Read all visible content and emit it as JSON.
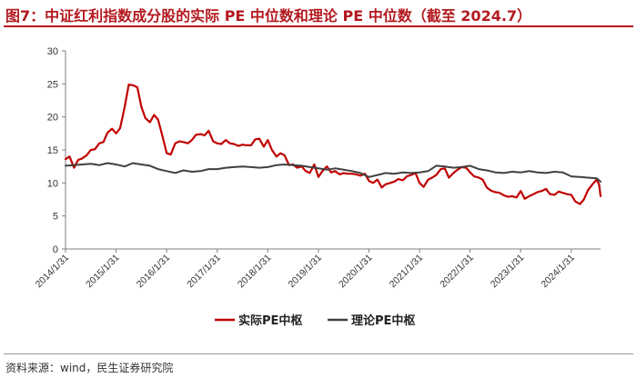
{
  "header": {
    "title": "图7：中证红利指数成分股的实际 PE 中位数和理论 PE 中位数（截至 2024.7）",
    "source": "资料来源：wind，民生证券研究院"
  },
  "colors": {
    "accent": "#b3191f",
    "actual": "#c00000",
    "theory": "#404040",
    "axis": "#7f7f7f"
  },
  "chart_data": {
    "type": "line",
    "title": "图7：中证红利指数成分股的实际 PE 中位数和理论 PE 中位数（截至 2024.7）",
    "xlabel": "",
    "ylabel": "",
    "ylim": [
      0,
      30
    ],
    "yticks": [
      0,
      5,
      10,
      15,
      20,
      25,
      30
    ],
    "xlim": [
      2014.0,
      2024.58
    ],
    "xticks": [
      {
        "label": "2014/1/31",
        "x": 2014.0
      },
      {
        "label": "2015/1/31",
        "x": 2015.0
      },
      {
        "label": "2016/1/31",
        "x": 2016.0
      },
      {
        "label": "2017/1/31",
        "x": 2017.0
      },
      {
        "label": "2018/1/31",
        "x": 2018.0
      },
      {
        "label": "2019/1/31",
        "x": 2019.0
      },
      {
        "label": "2020/1/31",
        "x": 2020.0
      },
      {
        "label": "2021/1/31",
        "x": 2021.0
      },
      {
        "label": "2022/1/31",
        "x": 2022.0
      },
      {
        "label": "2023/1/31",
        "x": 2023.0
      },
      {
        "label": "2024/1/31",
        "x": 2024.0
      }
    ],
    "legend_position": "bottom",
    "series": [
      {
        "name": "实际PE中枢",
        "color": "#c00000",
        "points": [
          [
            2014.0,
            13.6
          ],
          [
            2014.08,
            14.0
          ],
          [
            2014.17,
            12.3
          ],
          [
            2014.25,
            13.5
          ],
          [
            2014.33,
            13.7
          ],
          [
            2014.42,
            14.2
          ],
          [
            2014.5,
            15.0
          ],
          [
            2014.58,
            15.1
          ],
          [
            2014.67,
            16.0
          ],
          [
            2014.75,
            16.2
          ],
          [
            2014.83,
            17.6
          ],
          [
            2014.92,
            18.2
          ],
          [
            2015.0,
            17.5
          ],
          [
            2015.08,
            18.3
          ],
          [
            2015.17,
            21.5
          ],
          [
            2015.25,
            24.9
          ],
          [
            2015.33,
            24.8
          ],
          [
            2015.42,
            24.5
          ],
          [
            2015.5,
            21.5
          ],
          [
            2015.58,
            19.8
          ],
          [
            2015.67,
            19.2
          ],
          [
            2015.75,
            20.3
          ],
          [
            2015.83,
            19.6
          ],
          [
            2015.92,
            17.0
          ],
          [
            2016.0,
            14.5
          ],
          [
            2016.08,
            14.3
          ],
          [
            2016.17,
            16.0
          ],
          [
            2016.25,
            16.3
          ],
          [
            2016.33,
            16.2
          ],
          [
            2016.42,
            16.0
          ],
          [
            2016.5,
            16.5
          ],
          [
            2016.58,
            17.3
          ],
          [
            2016.67,
            17.4
          ],
          [
            2016.75,
            17.2
          ],
          [
            2016.83,
            17.9
          ],
          [
            2016.92,
            16.3
          ],
          [
            2017.0,
            16.0
          ],
          [
            2017.08,
            15.9
          ],
          [
            2017.17,
            16.5
          ],
          [
            2017.25,
            16.0
          ],
          [
            2017.33,
            15.9
          ],
          [
            2017.42,
            15.6
          ],
          [
            2017.5,
            15.8
          ],
          [
            2017.58,
            15.7
          ],
          [
            2017.67,
            15.7
          ],
          [
            2017.75,
            16.6
          ],
          [
            2017.83,
            16.7
          ],
          [
            2017.92,
            15.5
          ],
          [
            2018.0,
            16.5
          ],
          [
            2018.08,
            15.0
          ],
          [
            2018.17,
            14.0
          ],
          [
            2018.25,
            14.5
          ],
          [
            2018.33,
            14.2
          ],
          [
            2018.42,
            12.7
          ],
          [
            2018.5,
            12.8
          ],
          [
            2018.58,
            12.3
          ],
          [
            2018.67,
            12.5
          ],
          [
            2018.75,
            11.8
          ],
          [
            2018.83,
            11.5
          ],
          [
            2018.92,
            12.8
          ],
          [
            2019.0,
            10.9
          ],
          [
            2019.08,
            11.8
          ],
          [
            2019.17,
            12.5
          ],
          [
            2019.25,
            11.6
          ],
          [
            2019.33,
            11.8
          ],
          [
            2019.42,
            11.3
          ],
          [
            2019.5,
            11.5
          ],
          [
            2019.58,
            11.4
          ],
          [
            2019.67,
            11.4
          ],
          [
            2019.75,
            11.3
          ],
          [
            2019.83,
            11.1
          ],
          [
            2019.92,
            11.4
          ],
          [
            2020.0,
            10.3
          ],
          [
            2020.08,
            10.0
          ],
          [
            2020.17,
            10.5
          ],
          [
            2020.25,
            9.3
          ],
          [
            2020.33,
            9.8
          ],
          [
            2020.42,
            10.0
          ],
          [
            2020.5,
            10.2
          ],
          [
            2020.58,
            10.6
          ],
          [
            2020.67,
            10.4
          ],
          [
            2020.75,
            11.0
          ],
          [
            2020.83,
            11.2
          ],
          [
            2020.92,
            11.5
          ],
          [
            2021.0,
            10.0
          ],
          [
            2021.08,
            9.4
          ],
          [
            2021.17,
            10.5
          ],
          [
            2021.25,
            10.8
          ],
          [
            2021.33,
            11.2
          ],
          [
            2021.42,
            12.1
          ],
          [
            2021.5,
            12.2
          ],
          [
            2021.58,
            10.8
          ],
          [
            2021.67,
            11.5
          ],
          [
            2021.75,
            12.0
          ],
          [
            2021.83,
            12.4
          ],
          [
            2021.92,
            12.3
          ],
          [
            2022.0,
            11.6
          ],
          [
            2022.08,
            11.0
          ],
          [
            2022.17,
            10.8
          ],
          [
            2022.25,
            10.5
          ],
          [
            2022.33,
            9.3
          ],
          [
            2022.42,
            8.8
          ],
          [
            2022.5,
            8.6
          ],
          [
            2022.58,
            8.5
          ],
          [
            2022.67,
            8.1
          ],
          [
            2022.75,
            7.9
          ],
          [
            2022.83,
            8.0
          ],
          [
            2022.92,
            7.8
          ],
          [
            2023.0,
            8.8
          ],
          [
            2023.08,
            7.6
          ],
          [
            2023.17,
            8.0
          ],
          [
            2023.25,
            8.3
          ],
          [
            2023.33,
            8.6
          ],
          [
            2023.42,
            8.8
          ],
          [
            2023.5,
            9.1
          ],
          [
            2023.58,
            8.3
          ],
          [
            2023.67,
            8.2
          ],
          [
            2023.75,
            8.7
          ],
          [
            2023.83,
            8.5
          ],
          [
            2023.92,
            8.3
          ],
          [
            2024.0,
            8.2
          ],
          [
            2024.08,
            7.2
          ],
          [
            2024.17,
            6.8
          ],
          [
            2024.25,
            7.5
          ],
          [
            2024.33,
            8.9
          ],
          [
            2024.42,
            9.8
          ],
          [
            2024.5,
            10.5
          ],
          [
            2024.55,
            9.8
          ],
          [
            2024.58,
            8.0
          ]
        ]
      },
      {
        "name": "理论PE中枢",
        "color": "#404040",
        "points": [
          [
            2014.0,
            12.6
          ],
          [
            2014.17,
            12.7
          ],
          [
            2014.33,
            12.8
          ],
          [
            2014.5,
            12.9
          ],
          [
            2014.67,
            12.7
          ],
          [
            2014.83,
            13.0
          ],
          [
            2015.0,
            12.8
          ],
          [
            2015.17,
            12.5
          ],
          [
            2015.33,
            13.0
          ],
          [
            2015.5,
            12.8
          ],
          [
            2015.67,
            12.6
          ],
          [
            2015.83,
            12.1
          ],
          [
            2016.0,
            11.8
          ],
          [
            2016.17,
            11.5
          ],
          [
            2016.33,
            11.9
          ],
          [
            2016.5,
            11.7
          ],
          [
            2016.67,
            11.8
          ],
          [
            2016.83,
            12.1
          ],
          [
            2017.0,
            12.1
          ],
          [
            2017.17,
            12.3
          ],
          [
            2017.33,
            12.4
          ],
          [
            2017.5,
            12.5
          ],
          [
            2017.67,
            12.4
          ],
          [
            2017.83,
            12.3
          ],
          [
            2018.0,
            12.4
          ],
          [
            2018.17,
            12.7
          ],
          [
            2018.33,
            12.8
          ],
          [
            2018.5,
            12.7
          ],
          [
            2018.67,
            12.6
          ],
          [
            2018.83,
            12.4
          ],
          [
            2019.0,
            12.2
          ],
          [
            2019.17,
            12.0
          ],
          [
            2019.33,
            12.2
          ],
          [
            2019.5,
            12.0
          ],
          [
            2019.67,
            11.8
          ],
          [
            2019.83,
            11.5
          ],
          [
            2020.0,
            10.9
          ],
          [
            2020.17,
            11.2
          ],
          [
            2020.33,
            11.5
          ],
          [
            2020.5,
            11.4
          ],
          [
            2020.67,
            11.6
          ],
          [
            2020.83,
            11.5
          ],
          [
            2021.0,
            11.6
          ],
          [
            2021.17,
            11.8
          ],
          [
            2021.33,
            12.6
          ],
          [
            2021.5,
            12.5
          ],
          [
            2021.67,
            12.3
          ],
          [
            2021.83,
            12.4
          ],
          [
            2022.0,
            12.6
          ],
          [
            2022.17,
            12.1
          ],
          [
            2022.33,
            11.9
          ],
          [
            2022.5,
            11.6
          ],
          [
            2022.67,
            11.5
          ],
          [
            2022.83,
            11.7
          ],
          [
            2023.0,
            11.6
          ],
          [
            2023.17,
            11.8
          ],
          [
            2023.33,
            11.6
          ],
          [
            2023.5,
            11.5
          ],
          [
            2023.67,
            11.7
          ],
          [
            2023.83,
            11.6
          ],
          [
            2024.0,
            11.0
          ],
          [
            2024.17,
            10.9
          ],
          [
            2024.33,
            10.8
          ],
          [
            2024.5,
            10.7
          ],
          [
            2024.58,
            10.2
          ]
        ]
      }
    ]
  }
}
